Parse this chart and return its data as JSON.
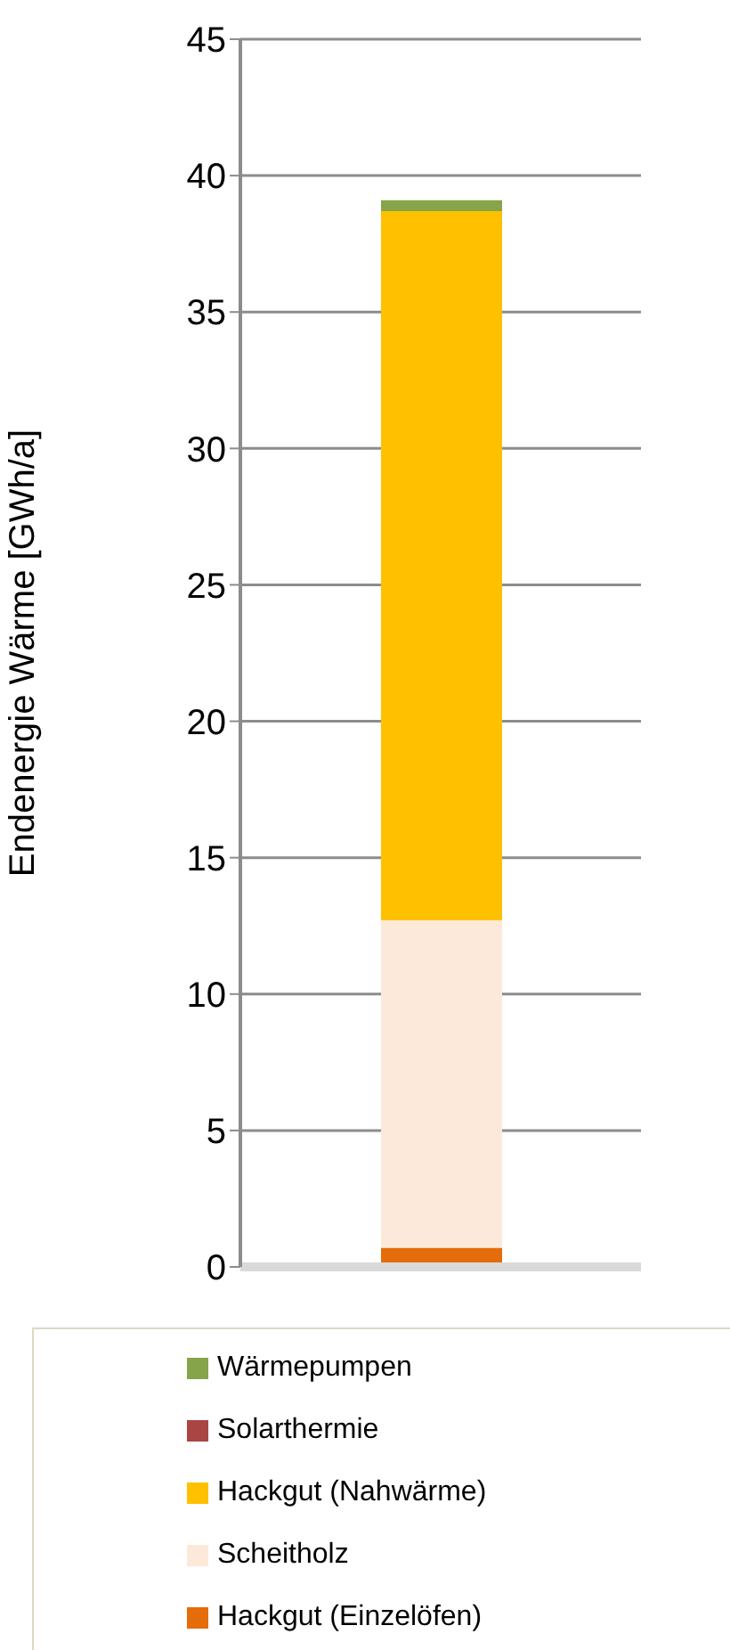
{
  "chart_data": {
    "type": "bar",
    "stacked": true,
    "ylabel": "Endenergie Wärme [GWh/a]",
    "categories": [
      null
    ],
    "series": [
      {
        "name": "Hackgut (Einzelöfen)",
        "color": "#e46c0a",
        "values": [
          0.7
        ]
      },
      {
        "name": "Scheitholz",
        "color": "#fde9d9",
        "values": [
          12.0
        ]
      },
      {
        "name": "Hackgut (Nahwärme)",
        "color": "#ffc000",
        "values": [
          26.0
        ]
      },
      {
        "name": "Solarthermie",
        "color": "#a94543",
        "values": [
          0
        ]
      },
      {
        "name": "Wärmepumpen",
        "color": "#86a44a",
        "values": [
          0.4
        ]
      }
    ],
    "ylim": [
      0,
      45
    ],
    "yticks": [
      0,
      5,
      10,
      15,
      20,
      25,
      30,
      35,
      40,
      45
    ],
    "grid": "y",
    "legend": "bottom"
  }
}
